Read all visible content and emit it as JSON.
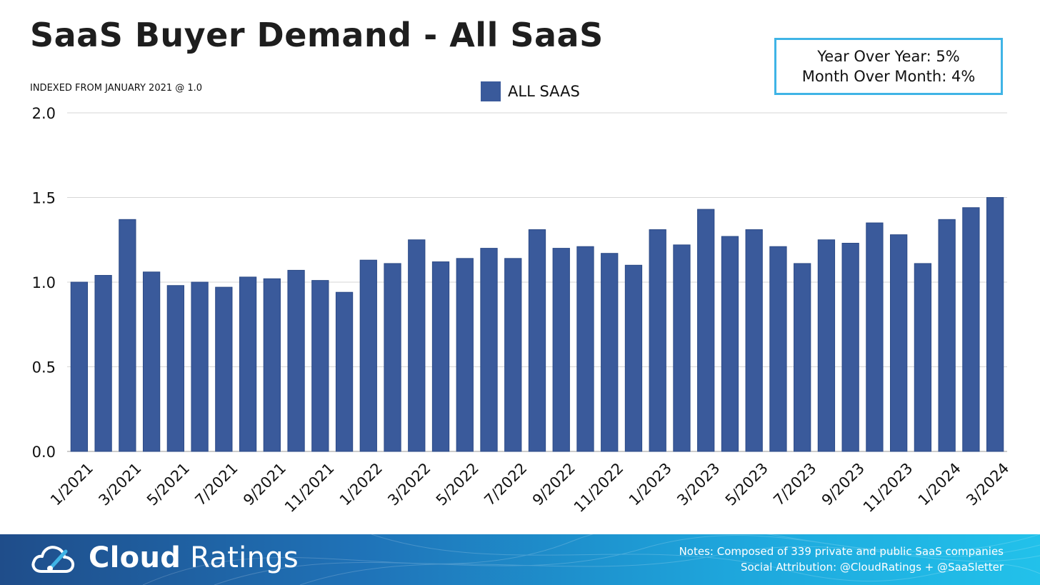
{
  "title": "SaaS Buyer Demand - All SaaS",
  "subtitle": "INDEXED FROM JANUARY 2021 @ 1.0",
  "stats": {
    "yoy": "Year Over Year: 5%",
    "mom": "Month Over Month: 4%",
    "border_color": "#3fb4e6"
  },
  "legend": {
    "label": "ALL SAAS",
    "color": "#3a5a9b"
  },
  "footer": {
    "brand_bold": "Cloud",
    "brand_light": "Ratings",
    "logo_icon": "cloud-gauge-icon",
    "notes_line1": "Notes: Composed of 339 private and public SaaS companies",
    "notes_line2": "Social Attribution: @CloudRatings + @SaaSletter"
  },
  "chart_data": {
    "type": "bar",
    "categories": [
      "1/2021",
      "2/2021",
      "3/2021",
      "4/2021",
      "5/2021",
      "6/2021",
      "7/2021",
      "8/2021",
      "9/2021",
      "10/2021",
      "11/2021",
      "12/2021",
      "1/2022",
      "2/2022",
      "3/2022",
      "4/2022",
      "5/2022",
      "6/2022",
      "7/2022",
      "8/2022",
      "9/2022",
      "10/2022",
      "11/2022",
      "12/2022",
      "1/2023",
      "2/2023",
      "3/2023",
      "4/2023",
      "5/2023",
      "6/2023",
      "7/2023",
      "8/2023",
      "9/2023",
      "10/2023",
      "11/2023",
      "12/2023",
      "1/2024",
      "2/2024",
      "3/2024"
    ],
    "tick_labels": [
      "1/2021",
      "",
      "3/2021",
      "",
      "5/2021",
      "",
      "7/2021",
      "",
      "9/2021",
      "",
      "11/2021",
      "",
      "1/2022",
      "",
      "3/2022",
      "",
      "5/2022",
      "",
      "7/2022",
      "",
      "9/2022",
      "",
      "11/2022",
      "",
      "1/2023",
      "",
      "3/2023",
      "",
      "5/2023",
      "",
      "7/2023",
      "",
      "9/2023",
      "",
      "11/2023",
      "",
      "1/2024",
      "",
      "3/2024"
    ],
    "series": [
      {
        "name": "ALL SAAS",
        "color": "#3a5a9b",
        "values": [
          1.0,
          1.04,
          1.37,
          1.06,
          0.98,
          1.0,
          0.97,
          1.03,
          1.02,
          1.07,
          1.01,
          0.94,
          1.13,
          1.11,
          1.25,
          1.12,
          1.14,
          1.2,
          1.14,
          1.31,
          1.2,
          1.21,
          1.17,
          1.1,
          1.31,
          1.22,
          1.43,
          1.27,
          1.31,
          1.21,
          1.11,
          1.25,
          1.23,
          1.35,
          1.28,
          1.11,
          1.37,
          1.44,
          1.5
        ]
      }
    ],
    "ylim": [
      0,
      2.0
    ],
    "yticks": [
      "0.0",
      "0.5",
      "1.0",
      "1.5",
      "2.0"
    ],
    "ytick_values": [
      0,
      0.5,
      1.0,
      1.5,
      2.0
    ],
    "grid": true,
    "legend_position": "top-center"
  }
}
